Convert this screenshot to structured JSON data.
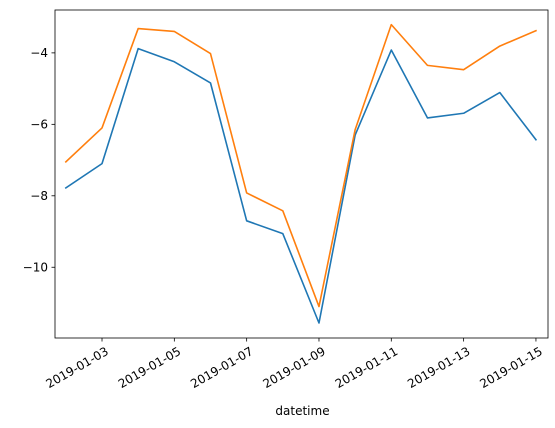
{
  "chart_data": {
    "type": "line",
    "title": "",
    "xlabel": "datetime",
    "ylabel": "",
    "x": [
      "2019-01-02",
      "2019-01-03",
      "2019-01-04",
      "2019-01-05",
      "2019-01-06",
      "2019-01-07",
      "2019-01-08",
      "2019-01-09",
      "2019-01-10",
      "2019-01-11",
      "2019-01-12",
      "2019-01-13",
      "2019-01-14",
      "2019-01-15"
    ],
    "series": [
      {
        "color": "#1f77b4",
        "values": [
          -7.78,
          -7.1,
          -3.88,
          -4.25,
          -4.84,
          -8.7,
          -9.06,
          -11.56,
          -6.3,
          -3.92,
          -5.82,
          -5.69,
          -5.11,
          -6.43
        ]
      },
      {
        "color": "#ff7f0e",
        "values": [
          -7.05,
          -6.1,
          -3.32,
          -3.4,
          -4.02,
          -7.92,
          -8.42,
          -11.1,
          -6.15,
          -3.21,
          -4.35,
          -4.47,
          -3.81,
          -3.38
        ]
      }
    ],
    "xticks": [
      "2019-01-03",
      "2019-01-05",
      "2019-01-07",
      "2019-01-09",
      "2019-01-11",
      "2019-01-13",
      "2019-01-15"
    ],
    "yticks": [
      -10,
      -8,
      -6,
      -4
    ],
    "ylim": [
      -11.98,
      -2.8
    ],
    "xlim": [
      "2019-01-01T16:48",
      "2019-01-15T08:00"
    ],
    "grid": false,
    "legend": "none"
  }
}
